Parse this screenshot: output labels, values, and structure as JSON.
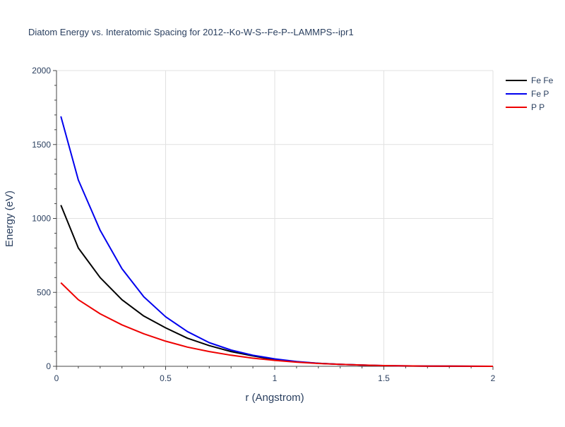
{
  "chart_data": {
    "type": "line",
    "title": "Diatom Energy vs. Interatomic Spacing for 2012--Ko-W-S--Fe-P--LAMMPS--ipr1",
    "xlabel": "r (Angstrom)",
    "ylabel": "Energy (eV)",
    "xlim": [
      0,
      2
    ],
    "ylim": [
      0,
      2000
    ],
    "xticks": [
      0,
      0.5,
      1,
      1.5,
      2
    ],
    "xtick_labels": [
      "0",
      "0.5",
      "1",
      "1.5",
      "2"
    ],
    "yticks": [
      0,
      500,
      1000,
      1500,
      2000
    ],
    "ytick_labels": [
      "0",
      "500",
      "1000",
      "1500",
      "2000"
    ],
    "grid": true,
    "legend_position": "top-right",
    "x": [
      0.02,
      0.1,
      0.2,
      0.3,
      0.4,
      0.5,
      0.6,
      0.7,
      0.8,
      0.9,
      1.0,
      1.1,
      1.2,
      1.3,
      1.4,
      1.5,
      1.6,
      1.7,
      1.8,
      1.9,
      2.0
    ],
    "series": [
      {
        "name": "Fe Fe",
        "color": "#000000",
        "values": [
          1090,
          800,
          600,
          450,
          340,
          260,
          190,
          140,
          100,
          70,
          45,
          30,
          20,
          13,
          8,
          4,
          2,
          1,
          0.5,
          0.2,
          0
        ]
      },
      {
        "name": "Fe P",
        "color": "#0000ee",
        "values": [
          1690,
          1260,
          920,
          660,
          470,
          335,
          235,
          160,
          110,
          75,
          50,
          32,
          20,
          13,
          8,
          5,
          3,
          1.5,
          0.8,
          0.3,
          0
        ]
      },
      {
        "name": "P P",
        "color": "#ee0000",
        "values": [
          565,
          450,
          355,
          280,
          220,
          170,
          130,
          100,
          75,
          55,
          40,
          28,
          19,
          13,
          8,
          5,
          3,
          1.5,
          0.8,
          0.3,
          0
        ]
      }
    ]
  }
}
